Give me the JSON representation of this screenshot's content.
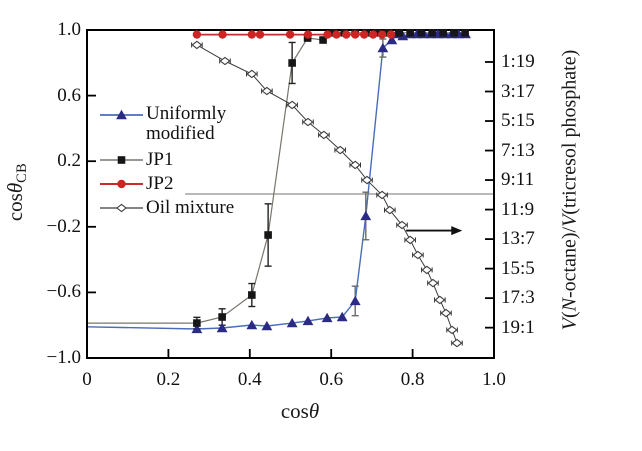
{
  "figure": {
    "x_axis_title_parts": [
      {
        "t": "cos"
      },
      {
        "t": "θ",
        "i": true
      }
    ],
    "y_left_title_parts": [
      {
        "t": "cos"
      },
      {
        "t": "θ",
        "i": true
      },
      {
        "t": "CB",
        "sub": true
      }
    ],
    "y_right_title_parts": [
      {
        "t": "V",
        "i": true
      },
      {
        "t": "("
      },
      {
        "t": "N",
        "i": true
      },
      {
        "t": "-octane)/",
        "spacer": false
      },
      {
        "t": "V",
        "i": true
      },
      {
        "t": "(tricresol phosphate)"
      }
    ]
  },
  "legend": {
    "items": [
      {
        "label": "Uniformly modified",
        "series": 0
      },
      {
        "label": "JP1",
        "series": 1
      },
      {
        "label": "JP2",
        "series": 2
      },
      {
        "label": "Oil mixture",
        "series": 3
      }
    ]
  },
  "chart_data": {
    "type": "line",
    "title": "",
    "xlabel": "cosθ",
    "ylabel_left": "cosθCB",
    "ylabel_right": "V(N-octane)/V(tricresol phosphate)",
    "xlim": [
      0,
      1.0
    ],
    "ylim": [
      -1.0,
      1.0
    ],
    "grid": false,
    "legend_position": "upper-left-inside",
    "xtick_labels": [
      {
        "value": 0,
        "label": "0"
      },
      {
        "value": 0.2,
        "label": "0.2"
      },
      {
        "value": 0.4,
        "label": "0.4"
      },
      {
        "value": 0.6,
        "label": "0.6"
      },
      {
        "value": 0.8,
        "label": "0.8"
      },
      {
        "value": 1.0,
        "label": "1.0"
      }
    ],
    "xtick_marks": [
      0.2,
      0.4,
      0.6,
      0.8
    ],
    "ytick_left_labels": [
      {
        "value": 1.0,
        "label": "1.0"
      },
      {
        "value": 0.6,
        "label": "0.6"
      },
      {
        "value": 0.2,
        "label": "0.2"
      },
      {
        "value": -0.2,
        "label": "−0.2"
      },
      {
        "value": -0.6,
        "label": "−0.6"
      },
      {
        "value": -1.0,
        "label": "−1.0"
      }
    ],
    "ytick_left_marks": [
      0.6,
      0.2,
      -0.2,
      -0.6
    ],
    "ytick_right_labels": [
      {
        "label": "1:19",
        "pos": 0.805
      },
      {
        "label": "3:17",
        "pos": 0.625
      },
      {
        "label": "5:15",
        "pos": 0.445
      },
      {
        "label": "7:13",
        "pos": 0.265
      },
      {
        "label": "9:11",
        "pos": 0.085
      },
      {
        "label": "11:9",
        "pos": -0.095
      },
      {
        "label": "13:7",
        "pos": -0.275
      },
      {
        "label": "15:5",
        "pos": -0.455
      },
      {
        "label": "17:3",
        "pos": -0.635
      },
      {
        "label": "19:1",
        "pos": -0.815
      }
    ],
    "reference_line": {
      "y": 0,
      "x_start": 0.241,
      "x_end": 1.0,
      "color": "#8f8f8f"
    },
    "arrow": {
      "y": -0.223,
      "x_start": 0.784,
      "x_end": 0.922,
      "color": "#111111"
    },
    "frame_color": "#000000",
    "series": [
      {
        "name": "Uniformly modified",
        "marker": "triangle",
        "line_color": "#4a6db8",
        "marker_color": "#2b2b85",
        "error_color": "#6b6b6b",
        "line_width": 1.4,
        "line_start": [
          0,
          -0.81
        ],
        "points": [
          [
            0.27,
            -0.823
          ],
          [
            0.332,
            -0.817
          ],
          [
            0.405,
            -0.799
          ],
          [
            0.442,
            -0.805
          ],
          [
            0.504,
            -0.787
          ],
          [
            0.543,
            -0.774
          ],
          [
            0.59,
            -0.756
          ],
          [
            0.627,
            -0.75
          ],
          [
            0.659,
            -0.652,
            0.09
          ],
          [
            0.685,
            -0.134,
            0.145
          ],
          [
            0.727,
            0.89,
            0.055
          ],
          [
            0.749,
            0.939
          ],
          [
            0.76,
            0.975
          ],
          [
            0.776,
            0.963
          ],
          [
            0.794,
            0.975
          ],
          [
            0.811,
            0.975
          ],
          [
            0.828,
            0.975
          ],
          [
            0.845,
            0.975
          ],
          [
            0.862,
            0.975
          ],
          [
            0.879,
            0.975
          ],
          [
            0.896,
            0.975
          ],
          [
            0.913,
            0.975
          ],
          [
            0.93,
            0.975
          ]
        ]
      },
      {
        "name": "JP1",
        "marker": "square",
        "line_color": "#7a756e",
        "marker_color": "#161616",
        "error_color": "#222222",
        "line_width": 1.2,
        "line_start": [
          0,
          -0.787
        ],
        "points": [
          [
            0.27,
            -0.787,
            0.035
          ],
          [
            0.332,
            -0.75,
            0.05
          ],
          [
            0.405,
            -0.616,
            0.07
          ],
          [
            0.445,
            -0.25,
            0.19
          ],
          [
            0.504,
            0.799,
            0.125
          ],
          [
            0.542,
            0.951
          ],
          [
            0.58,
            0.939
          ],
          [
            0.605,
            0.983
          ],
          [
            0.632,
            0.983
          ],
          [
            0.659,
            0.983
          ],
          [
            0.686,
            0.983
          ],
          [
            0.713,
            0.983
          ],
          [
            0.74,
            0.983
          ],
          [
            0.767,
            0.983
          ],
          [
            0.794,
            0.983
          ],
          [
            0.821,
            0.983
          ],
          [
            0.848,
            0.983
          ],
          [
            0.875,
            0.983
          ],
          [
            0.902,
            0.983
          ],
          [
            0.929,
            0.983
          ]
        ]
      },
      {
        "name": "JP2",
        "marker": "circle",
        "line_color": "#c92c2c",
        "marker_color": "#cd2424",
        "error_color": "#c92c2c",
        "line_width": 1.8,
        "points": [
          [
            0.27,
            0.972
          ],
          [
            0.333,
            0.972
          ],
          [
            0.405,
            0.972
          ],
          [
            0.425,
            0.972
          ],
          [
            0.499,
            0.972
          ],
          [
            0.543,
            0.972
          ],
          [
            0.591,
            0.972
          ],
          [
            0.613,
            0.972
          ],
          [
            0.637,
            0.972
          ],
          [
            0.659,
            0.972
          ],
          [
            0.681,
            0.972
          ],
          [
            0.703,
            0.972
          ],
          [
            0.725,
            0.972
          ],
          [
            0.747,
            0.972
          ]
        ]
      },
      {
        "name": "Oil mixture",
        "marker": "diamond",
        "line_color": "#3c3c3c",
        "marker_color": "#ffffff",
        "marker_stroke": "#3c3c3c",
        "error_color": "#333333",
        "line_width": 1,
        "x_error": 0.013,
        "points": [
          [
            0.27,
            0.909
          ],
          [
            0.339,
            0.811
          ],
          [
            0.405,
            0.732
          ],
          [
            0.442,
            0.628
          ],
          [
            0.504,
            0.543
          ],
          [
            0.543,
            0.439
          ],
          [
            0.582,
            0.36
          ],
          [
            0.622,
            0.268
          ],
          [
            0.659,
            0.177
          ],
          [
            0.688,
            0.085
          ],
          [
            0.725,
            -0.006
          ],
          [
            0.744,
            -0.098
          ],
          [
            0.774,
            -0.189
          ],
          [
            0.794,
            -0.28
          ],
          [
            0.813,
            -0.372
          ],
          [
            0.835,
            -0.463
          ],
          [
            0.85,
            -0.543
          ],
          [
            0.867,
            -0.646
          ],
          [
            0.882,
            -0.726
          ],
          [
            0.897,
            -0.829
          ],
          [
            0.909,
            -0.909
          ]
        ]
      }
    ]
  }
}
